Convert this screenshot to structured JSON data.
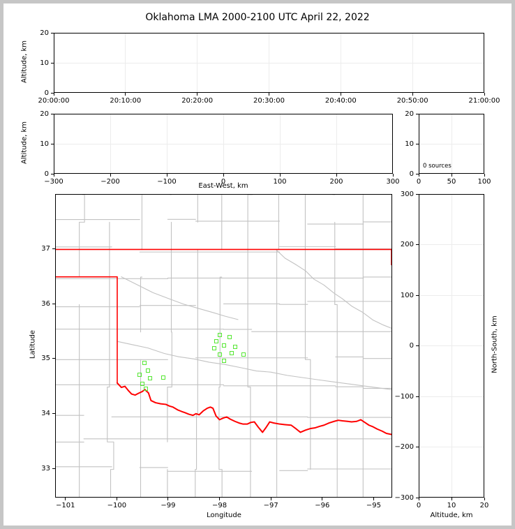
{
  "title": "Oklahoma LMA 2000-2100 UTC April 22, 2022",
  "colors": {
    "state_border": "#ff0000",
    "county_border": "#c2c2c2",
    "station_marker": "#55e632",
    "gridline": "#ececec",
    "frame": "#c6c6c6"
  },
  "chart_data": [
    {
      "id": "time-height-panel",
      "type": "scatter",
      "ylabel": "Altitude, km",
      "x_tick_labels": [
        "20:00:00",
        "20:10:00",
        "20:20:00",
        "20:30:00",
        "20:40:00",
        "20:50:00",
        "21:00:00"
      ],
      "yticks": [
        0,
        10,
        20
      ],
      "ylim": [
        0,
        20
      ],
      "points": []
    },
    {
      "id": "east-west-height-panel",
      "type": "scatter",
      "xlabel": "East-West, km",
      "ylabel": "Altitude, km",
      "xticks": [
        -300,
        -200,
        -100,
        0,
        100,
        200,
        300
      ],
      "xlim": [
        -300,
        300
      ],
      "yticks": [
        0,
        10,
        20
      ],
      "ylim": [
        0,
        20
      ],
      "points": []
    },
    {
      "id": "source-count-panel",
      "type": "line",
      "annotation": "0 sources",
      "xticks": [
        0,
        50,
        100
      ],
      "xlim": [
        0,
        100
      ],
      "yticks": [
        0,
        10,
        20
      ],
      "ylim": [
        0,
        20
      ],
      "points": []
    },
    {
      "id": "plan-view-map-panel",
      "type": "scatter",
      "xlabel": "Longitude",
      "ylabel": "Latitude",
      "xticks": [
        -101,
        -100,
        -99,
        -98,
        -97,
        -96,
        -95
      ],
      "xlim": [
        -101.2,
        -94.64
      ],
      "yticks": [
        33,
        34,
        35,
        36,
        37
      ],
      "ylim": [
        32.47,
        38.0
      ],
      "stations_lon_lat": [
        [
          -97.99,
          35.42
        ],
        [
          -97.79,
          35.38
        ],
        [
          -98.05,
          35.31
        ],
        [
          -97.9,
          35.24
        ],
        [
          -98.09,
          35.18
        ],
        [
          -97.69,
          35.21
        ],
        [
          -97.75,
          35.1
        ],
        [
          -97.99,
          35.07
        ],
        [
          -97.53,
          35.07
        ],
        [
          -97.91,
          34.95
        ],
        [
          -99.46,
          34.92
        ],
        [
          -99.38,
          34.78
        ],
        [
          -99.55,
          34.7
        ],
        [
          -99.34,
          34.64
        ],
        [
          -99.08,
          34.65
        ],
        [
          -99.49,
          34.53
        ],
        [
          -99.43,
          34.45
        ]
      ]
    },
    {
      "id": "north-south-height-panel",
      "type": "scatter",
      "xlabel": "Altitude, km",
      "ylabel": "North-South, km",
      "xticks": [
        0,
        10,
        20
      ],
      "xlim": [
        0,
        20
      ],
      "yticks": [
        -300,
        -200,
        -100,
        0,
        100,
        200,
        300
      ],
      "ylim": [
        -300,
        300
      ],
      "points": []
    }
  ]
}
